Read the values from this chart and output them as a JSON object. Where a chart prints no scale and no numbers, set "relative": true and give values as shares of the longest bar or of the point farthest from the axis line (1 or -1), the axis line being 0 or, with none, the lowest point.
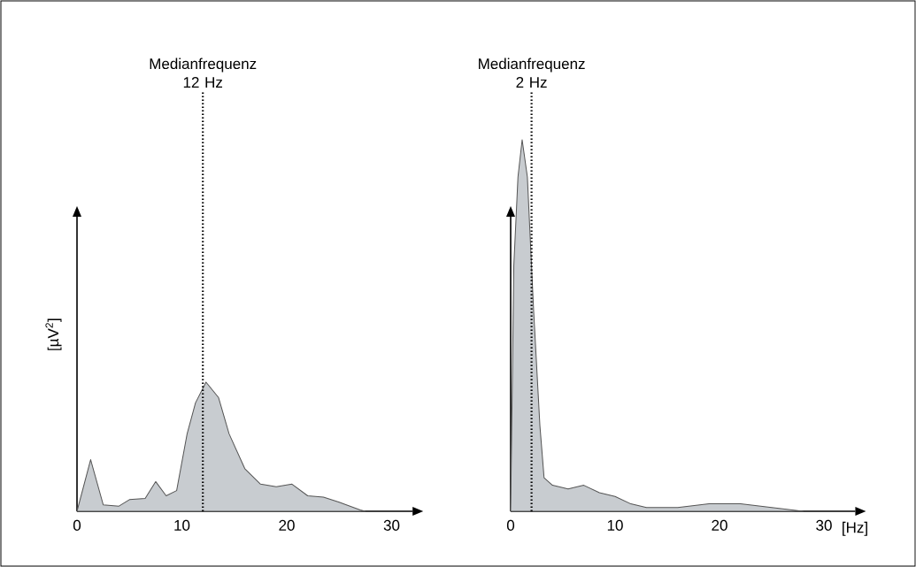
{
  "chart_data": [
    {
      "type": "area",
      "relative": true,
      "ylabel": "[µV$^{2}$]",
      "xlim": [
        0,
        32
      ],
      "xticks": [
        0,
        10,
        20,
        30
      ],
      "color": "#c8ccd0",
      "x": [
        0,
        1.3,
        2.5,
        4,
        5,
        6.5,
        7.5,
        8.5,
        9.5,
        10.5,
        11.3,
        12.3,
        13.5,
        14.5,
        16,
        17.5,
        19,
        20.5,
        22,
        23.5,
        25,
        27,
        27.5
      ],
      "values": [
        0,
        0.4,
        0.05,
        0.04,
        0.09,
        0.1,
        0.23,
        0.12,
        0.16,
        0.6,
        0.84,
        1,
        0.88,
        0.6,
        0.33,
        0.21,
        0.19,
        0.21,
        0.12,
        0.11,
        0.07,
        0.01,
        0
      ],
      "ref_lines": [
        {
          "axis": "x",
          "value": 12,
          "label": "Medianfrequenz 12 Hz",
          "line_style": "dotted"
        }
      ]
    },
    {
      "type": "area",
      "relative": true,
      "xlabel": "[Hz]",
      "xlim": [
        0,
        33
      ],
      "xticks": [
        0,
        10,
        20,
        30
      ],
      "color": "#c8ccd0",
      "x": [
        0,
        0.3,
        0.7,
        1.1,
        1.6,
        2.2,
        2.8,
        3.2,
        4,
        5.5,
        7,
        8.5,
        10,
        11.5,
        13,
        16,
        19,
        22,
        25,
        28
      ],
      "values": [
        0,
        0.66,
        0.9,
        1,
        0.9,
        0.54,
        0.23,
        0.09,
        0.07,
        0.06,
        0.07,
        0.05,
        0.04,
        0.02,
        0.01,
        0.01,
        0.02,
        0.02,
        0.01,
        0
      ],
      "ref_lines": [
        {
          "axis": "x",
          "value": 2,
          "label": "Medianfrequenz 2 Hz",
          "line_style": "dotted"
        }
      ]
    }
  ]
}
